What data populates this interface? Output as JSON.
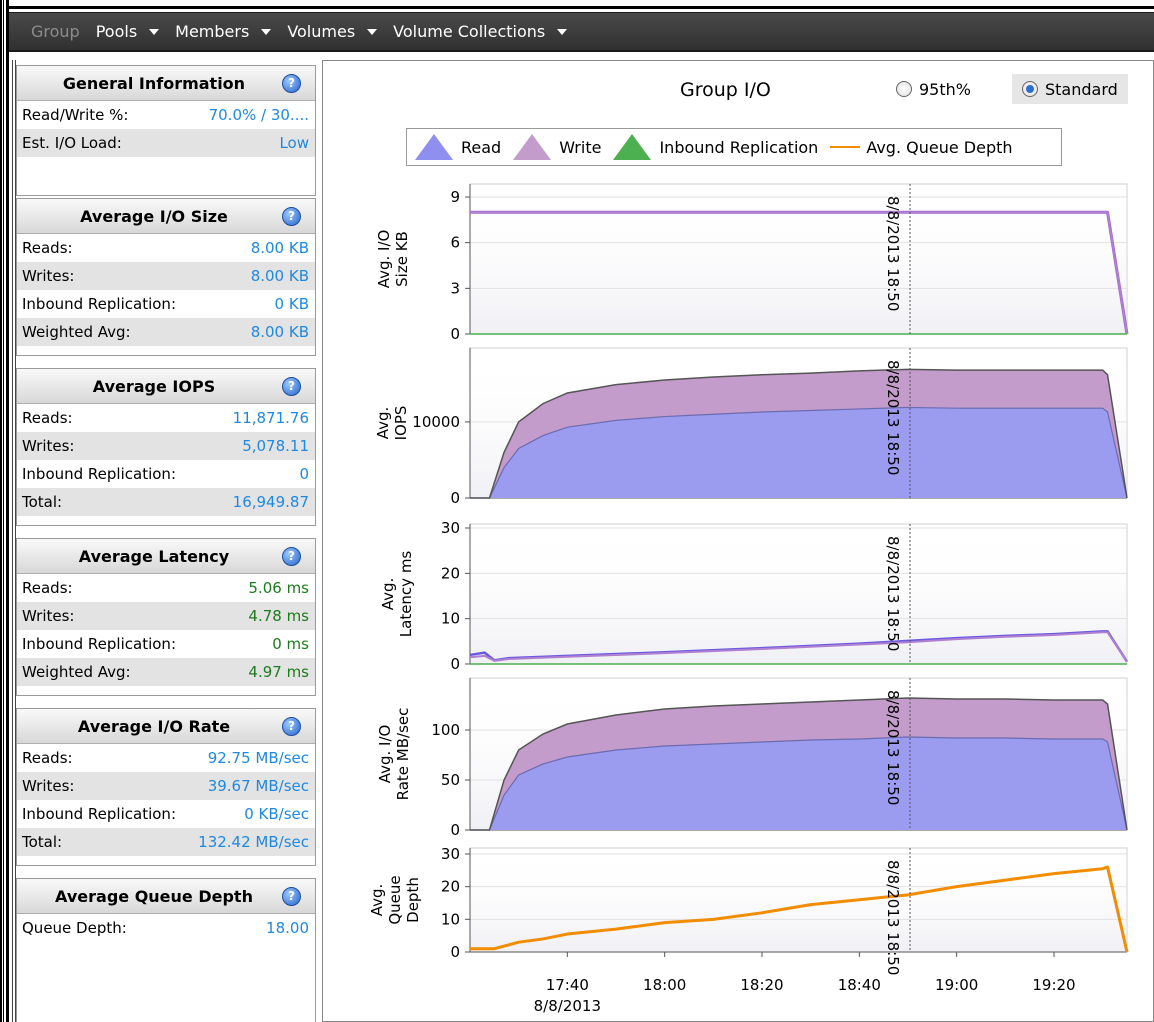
{
  "nav": {
    "items": [
      "Group",
      "Pools",
      "Members",
      "Volumes",
      "Volume Collections"
    ]
  },
  "panels": [
    {
      "title": "General Information",
      "rows": [
        {
          "label": "Read/Write %:",
          "value": "70.0% / 30...."
        },
        {
          "label": "Est. I/O Load:",
          "value": "Low"
        }
      ]
    },
    {
      "title": "Average I/O Size",
      "rows": [
        {
          "label": "Reads:",
          "value": "8.00 KB"
        },
        {
          "label": "Writes:",
          "value": "8.00 KB"
        },
        {
          "label": "Inbound Replication:",
          "value": "0 KB"
        },
        {
          "label": "Weighted Avg:",
          "value": "8.00 KB"
        }
      ]
    },
    {
      "title": "Average IOPS",
      "rows": [
        {
          "label": "Reads:",
          "value": "11,871.76"
        },
        {
          "label": "Writes:",
          "value": "5,078.11"
        },
        {
          "label": "Inbound Replication:",
          "value": "0"
        },
        {
          "label": "Total:",
          "value": "16,949.87"
        }
      ]
    },
    {
      "title": "Average Latency",
      "rows": [
        {
          "label": "Reads:",
          "value": "5.06 ms"
        },
        {
          "label": "Writes:",
          "value": "4.78 ms"
        },
        {
          "label": "Inbound Replication:",
          "value": "0 ms"
        },
        {
          "label": "Weighted Avg:",
          "value": "4.97 ms"
        }
      ]
    },
    {
      "title": "Average I/O Rate",
      "rows": [
        {
          "label": "Reads:",
          "value": "92.75 MB/sec"
        },
        {
          "label": "Writes:",
          "value": "39.67 MB/sec"
        },
        {
          "label": "Inbound Replication:",
          "value": "0 KB/sec"
        },
        {
          "label": "Total:",
          "value": "132.42 MB/sec"
        }
      ]
    },
    {
      "title": "Average Queue Depth",
      "rows": [
        {
          "label": "Queue Depth:",
          "value": "18.00"
        }
      ]
    }
  ],
  "chart": {
    "title": "Group I/O",
    "radio_95": "95th%",
    "radio_standard": "Standard",
    "selected": "Standard",
    "legend": [
      "Read",
      "Write",
      "Inbound Replication",
      "Avg. Queue Depth"
    ],
    "marker_label": "8/8/2013 18:50",
    "x_tick_labels": [
      "17:40",
      "18:00",
      "18:20",
      "18:40",
      "19:00",
      "19:20"
    ],
    "x_date_label": "8/8/2013"
  },
  "colors": {
    "read": "#9b9bf0",
    "write": "#c49ccc",
    "inbound": "#4caf50",
    "queue": "#f28c00",
    "value_blue": "#1e88e5",
    "value_green": "#1b7d1b"
  },
  "chart_data": [
    {
      "type": "line",
      "ylabel": "Avg. I/O Size KB",
      "ylim": [
        0,
        9
      ],
      "yticks": [
        0,
        3,
        6,
        9
      ],
      "series": [
        {
          "name": "Read",
          "x": [
            "17:20",
            "17:30",
            "17:40",
            "18:00",
            "18:20",
            "18:40",
            "19:00",
            "19:20",
            "19:31",
            "19:35"
          ],
          "values": [
            8,
            8,
            8,
            8,
            8,
            8,
            8,
            8,
            8,
            0
          ]
        },
        {
          "name": "Write",
          "x": [
            "17:20",
            "17:30",
            "17:40",
            "18:00",
            "18:20",
            "18:40",
            "19:00",
            "19:20",
            "19:31",
            "19:35"
          ],
          "values": [
            8,
            8,
            8,
            8,
            8,
            8,
            8,
            8,
            8,
            0
          ]
        },
        {
          "name": "Inbound Replication",
          "x": [
            "17:20",
            "19:35"
          ],
          "values": [
            0,
            0
          ]
        }
      ]
    },
    {
      "type": "area",
      "ylabel": "Avg. IOPS",
      "ylim": [
        0,
        18000
      ],
      "yticks": [
        0,
        10000
      ],
      "series": [
        {
          "name": "Read",
          "x": [
            "17:20",
            "17:24",
            "17:27",
            "17:30",
            "17:35",
            "17:40",
            "17:50",
            "18:00",
            "18:10",
            "18:20",
            "18:30",
            "18:40",
            "18:50",
            "19:00",
            "19:10",
            "19:20",
            "19:30",
            "19:31",
            "19:35"
          ],
          "values": [
            0,
            0,
            4000,
            6500,
            8200,
            9300,
            10200,
            10700,
            11000,
            11300,
            11500,
            11700,
            11900,
            11800,
            11800,
            11800,
            11800,
            11300,
            0
          ]
        },
        {
          "name": "Write",
          "x": [
            "17:20",
            "17:24",
            "17:27",
            "17:30",
            "17:35",
            "17:40",
            "17:50",
            "18:00",
            "18:10",
            "18:20",
            "18:30",
            "18:40",
            "18:50",
            "19:00",
            "19:10",
            "19:20",
            "19:30",
            "19:31",
            "19:35"
          ],
          "values": [
            0,
            0,
            2000,
            3500,
            4200,
            4500,
            4700,
            4800,
            4900,
            4900,
            4900,
            5000,
            5000,
            5000,
            5000,
            5000,
            5000,
            4900,
            0
          ]
        }
      ]
    },
    {
      "type": "line",
      "ylabel": "Avg. Latency ms",
      "ylim": [
        0,
        30
      ],
      "yticks": [
        0,
        10,
        20,
        30
      ],
      "series": [
        {
          "name": "Read",
          "x": [
            "17:20",
            "17:23",
            "17:25",
            "17:28",
            "17:40",
            "18:00",
            "18:20",
            "18:40",
            "18:50",
            "19:00",
            "19:10",
            "19:20",
            "19:30",
            "19:31",
            "19:35"
          ],
          "values": [
            2,
            2.5,
            0.8,
            1.3,
            1.8,
            2.6,
            3.5,
            4.5,
            5.1,
            5.7,
            6.2,
            6.6,
            7.2,
            7.2,
            0.5
          ]
        },
        {
          "name": "Write",
          "x": [
            "17:20",
            "17:23",
            "17:25",
            "17:28",
            "17:40",
            "18:00",
            "18:20",
            "18:40",
            "18:50",
            "19:00",
            "19:10",
            "19:20",
            "19:30",
            "19:31",
            "19:35"
          ],
          "values": [
            1.5,
            1.8,
            0.7,
            1.1,
            1.6,
            2.4,
            3.3,
            4.3,
            4.8,
            5.5,
            6.0,
            6.4,
            7.0,
            7.0,
            0.5
          ]
        },
        {
          "name": "Inbound Replication",
          "x": [
            "17:20",
            "19:35"
          ],
          "values": [
            0,
            0
          ]
        }
      ]
    },
    {
      "type": "area",
      "ylabel": "Avg. I/O Rate MB/sec",
      "ylim": [
        0,
        140
      ],
      "yticks": [
        0,
        50,
        100
      ],
      "series": [
        {
          "name": "Read",
          "x": [
            "17:20",
            "17:24",
            "17:27",
            "17:30",
            "17:35",
            "17:40",
            "17:50",
            "18:00",
            "18:10",
            "18:20",
            "18:30",
            "18:40",
            "18:50",
            "19:00",
            "19:10",
            "19:20",
            "19:30",
            "19:31",
            "19:35"
          ],
          "values": [
            0,
            0,
            35,
            55,
            66,
            73,
            80,
            84,
            86,
            88,
            90,
            91,
            93,
            92,
            92,
            91,
            91,
            88,
            0
          ]
        },
        {
          "name": "Write",
          "x": [
            "17:20",
            "17:24",
            "17:27",
            "17:30",
            "17:35",
            "17:40",
            "17:50",
            "18:00",
            "18:10",
            "18:20",
            "18:30",
            "18:40",
            "18:50",
            "19:00",
            "19:10",
            "19:20",
            "19:30",
            "19:31",
            "19:35"
          ],
          "values": [
            0,
            0,
            15,
            25,
            30,
            33,
            35,
            37,
            38,
            38,
            38,
            39,
            39,
            39,
            39,
            39,
            39,
            38,
            0
          ]
        }
      ]
    },
    {
      "type": "line",
      "ylabel": "Avg. Queue Depth",
      "ylim": [
        0,
        30
      ],
      "yticks": [
        0,
        10,
        20,
        30
      ],
      "series": [
        {
          "name": "Avg. Queue Depth",
          "x": [
            "17:20",
            "17:25",
            "17:30",
            "17:35",
            "17:40",
            "17:50",
            "18:00",
            "18:10",
            "18:20",
            "18:30",
            "18:40",
            "18:50",
            "19:00",
            "19:10",
            "19:20",
            "19:30",
            "19:31",
            "19:35"
          ],
          "values": [
            1,
            1,
            3,
            4,
            5.5,
            7,
            9,
            10,
            12,
            14.5,
            16,
            17.5,
            20,
            22,
            24,
            25.5,
            26,
            0
          ]
        }
      ]
    }
  ]
}
